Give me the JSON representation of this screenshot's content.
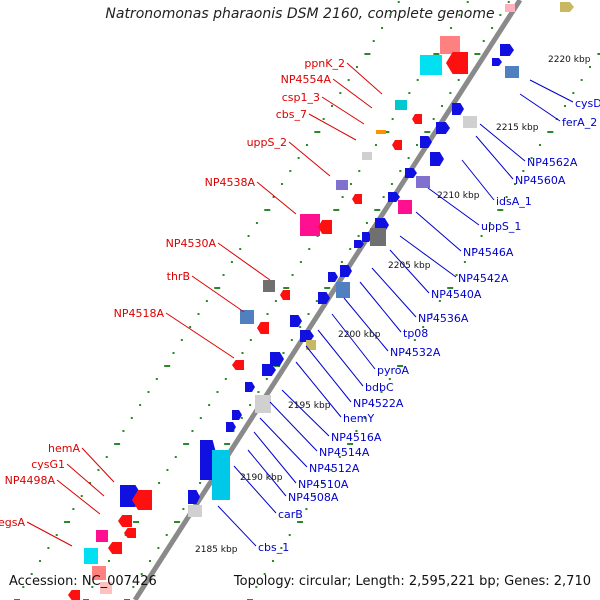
{
  "title": "Natronomonas pharaonis DSM 2160, complete genome",
  "footer": {
    "accession": "Accession: NC_007426",
    "summary": "Topology: circular; Length: 2,595,221 bp; Genes: 2,710"
  },
  "colors": {
    "backbone": "#8a8a8a",
    "forward_label": "#0000cc",
    "reverse_label": "#dd0000",
    "tick_dots": "#2a8a2a"
  },
  "ticks": [
    {
      "label": "2220 kbp"
    },
    {
      "label": "2215 kbp"
    },
    {
      "label": "2210 kbp"
    },
    {
      "label": "2205 kbp"
    },
    {
      "label": "2200 kbp"
    },
    {
      "label": "2195 kbp"
    },
    {
      "label": "2190 kbp"
    },
    {
      "label": "2185 kbp"
    }
  ],
  "forward_genes": [
    {
      "label": "cysD"
    },
    {
      "label": "ferA_2"
    },
    {
      "label": "NP4562A"
    },
    {
      "label": "NP4560A"
    },
    {
      "label": "idsA_1"
    },
    {
      "label": "uppS_1"
    },
    {
      "label": "NP4546A"
    },
    {
      "label": "NP4542A"
    },
    {
      "label": "NP4540A"
    },
    {
      "label": "NP4536A"
    },
    {
      "label": "tp08"
    },
    {
      "label": "NP4532A"
    },
    {
      "label": "pyroA"
    },
    {
      "label": "bdbC"
    },
    {
      "label": "NP4522A"
    },
    {
      "label": "hemY"
    },
    {
      "label": "NP4516A"
    },
    {
      "label": "NP4514A"
    },
    {
      "label": "NP4512A"
    },
    {
      "label": "NP4510A"
    },
    {
      "label": "NP4508A"
    },
    {
      "label": "carB"
    },
    {
      "label": "cbs_1"
    }
  ],
  "reverse_genes": [
    {
      "label": "ppnK_2"
    },
    {
      "label": "NP4554A"
    },
    {
      "label": "csp1_3"
    },
    {
      "label": "cbs_7"
    },
    {
      "label": "uppS_2"
    },
    {
      "label": "NP4538A"
    },
    {
      "label": "NP4530A"
    },
    {
      "label": "thrB"
    },
    {
      "label": "NP4518A"
    },
    {
      "label": "hemA"
    },
    {
      "label": "cysG1"
    },
    {
      "label": "NP4498A"
    },
    {
      "label": "egsA"
    }
  ]
}
